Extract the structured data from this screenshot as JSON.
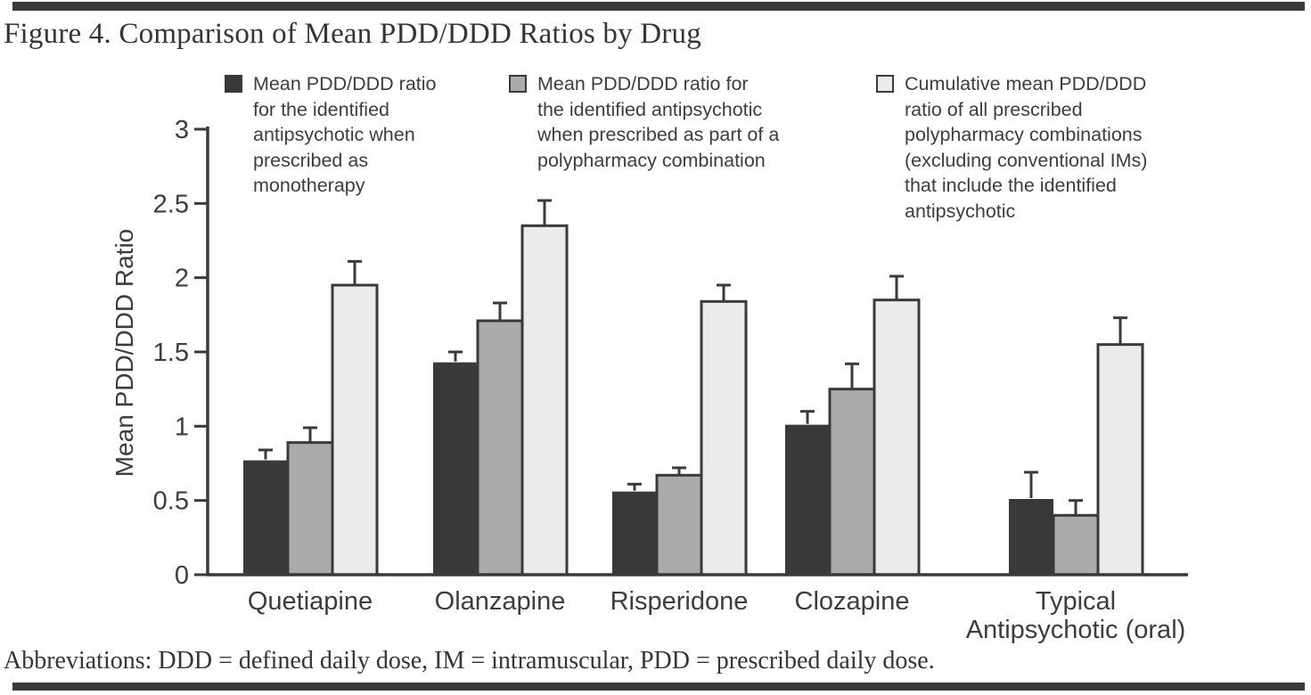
{
  "page": {
    "figure_title": "Figure 4. Comparison of Mean PDD/DDD Ratios by Drug",
    "footnote": "Abbreviations: DDD = defined daily dose, IM = intramuscular, PDD = prescribed daily dose.",
    "rule_color": "#3a3a3a"
  },
  "legend": {
    "items": [
      {
        "label": "Mean PDD/DDD ratio\nfor the identified\nantipsychotic when\nprescribed as\nmonotherapy",
        "color": "#3a383a",
        "border": "#3a383a"
      },
      {
        "label": "Mean PDD/DDD ratio for\nthe identified antipsychotic\nwhen prescribed as part of a\npolypharmacy combination",
        "color": "#ababab",
        "border": "#3a3a3a"
      },
      {
        "label": "Cumulative mean PDD/DDD\nratio of all prescribed\npolypharmacy combinations\n(excluding conventional IMs)\nthat include the identified\nantipsychotic",
        "color": "#ebebeb",
        "border": "#3a3a3a"
      }
    ]
  },
  "chart_data": {
    "type": "bar",
    "title": "Figure 4. Comparison of Mean PDD/DDD Ratios by Drug",
    "xlabel": "",
    "ylabel": "Mean PDD/DDD Ratio",
    "ylim": [
      0,
      3
    ],
    "yticks": [
      0,
      0.5,
      1,
      1.5,
      2,
      2.5,
      3
    ],
    "grid": false,
    "legend_position": "top",
    "error_bars": true,
    "categories": [
      "Quetiapine",
      "Olanzapine",
      "Risperidone",
      "Clozapine",
      "Typical\nAntipsychotic (oral)"
    ],
    "series": [
      {
        "name": "Mean PDD/DDD ratio for the identified antipsychotic when prescribed as monotherapy",
        "color": "#3a383a",
        "values": [
          0.77,
          1.43,
          0.56,
          1.01,
          0.51
        ],
        "errors": [
          0.07,
          0.07,
          0.05,
          0.09,
          0.18
        ]
      },
      {
        "name": "Mean PDD/DDD ratio for the identified antipsychotic when prescribed as part of a polypharmacy combination",
        "color": "#ababab",
        "values": [
          0.89,
          1.71,
          0.67,
          1.25,
          0.4
        ],
        "errors": [
          0.1,
          0.12,
          0.05,
          0.17,
          0.1
        ]
      },
      {
        "name": "Cumulative mean PDD/DDD ratio of all prescribed polypharmacy combinations (excluding conventional IMs) that include the identified antipsychotic",
        "color": "#ebebeb",
        "values": [
          1.95,
          2.35,
          1.84,
          1.85,
          1.55
        ],
        "errors": [
          0.16,
          0.17,
          0.11,
          0.16,
          0.18
        ]
      }
    ],
    "axis_color": "#3a3a3a",
    "text_color": "#3d3d3d"
  }
}
